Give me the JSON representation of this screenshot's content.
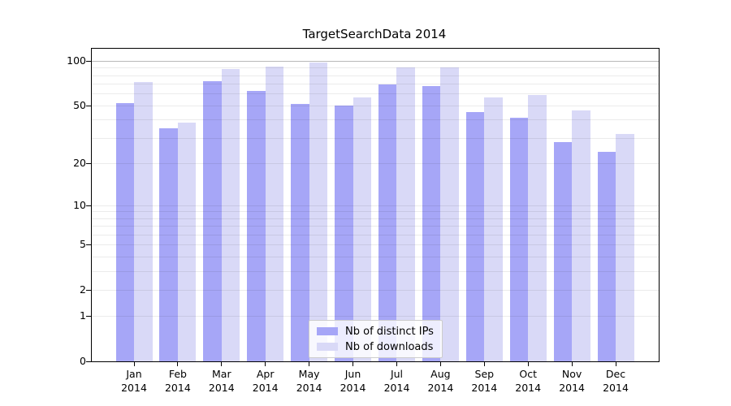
{
  "title": "TargetSearchData 2014",
  "legend": {
    "items": [
      {
        "label": "Nb of distinct IPs",
        "color": "#a6a6f7"
      },
      {
        "label": "Nb of downloads",
        "color": "#d9d9f7"
      }
    ]
  },
  "chart_data": {
    "type": "bar",
    "title": "TargetSearchData 2014",
    "xlabel": "",
    "ylabel": "",
    "scale": "log1p",
    "year": "2014",
    "categories": [
      "Jan",
      "Feb",
      "Mar",
      "Apr",
      "May",
      "Jun",
      "Jul",
      "Aug",
      "Sep",
      "Oct",
      "Nov",
      "Dec"
    ],
    "series": [
      {
        "name": "Nb of distinct IPs",
        "color": "#a6a6f7",
        "values": [
          52,
          35,
          73,
          63,
          51,
          50,
          69,
          68,
          45,
          41,
          28,
          24
        ]
      },
      {
        "name": "Nb of downloads",
        "color": "#d9d9f7",
        "values": [
          72,
          38,
          88,
          92,
          97,
          57,
          90,
          90,
          57,
          59,
          46,
          32
        ]
      }
    ],
    "y_ticks": [
      0,
      1,
      2,
      5,
      10,
      20,
      50,
      100
    ],
    "grid_minor_values": [
      1,
      2,
      3,
      4,
      5,
      6,
      7,
      8,
      9,
      10,
      20,
      30,
      40,
      50,
      60,
      70,
      80,
      90
    ],
    "grid_major_values": [
      100
    ],
    "ylim": [
      0,
      121
    ],
    "grid": "horizontal, drawn over bars",
    "legend_position": "lower center"
  },
  "colors": {
    "background": "#ffffff",
    "spine": "#000000",
    "grid_minor": "rgba(0,0,0,0.08)",
    "grid_major": "rgba(0,0,0,0.28)",
    "bar_distinct_ips": "#a6a6f7",
    "bar_downloads": "#d9d9f7"
  }
}
